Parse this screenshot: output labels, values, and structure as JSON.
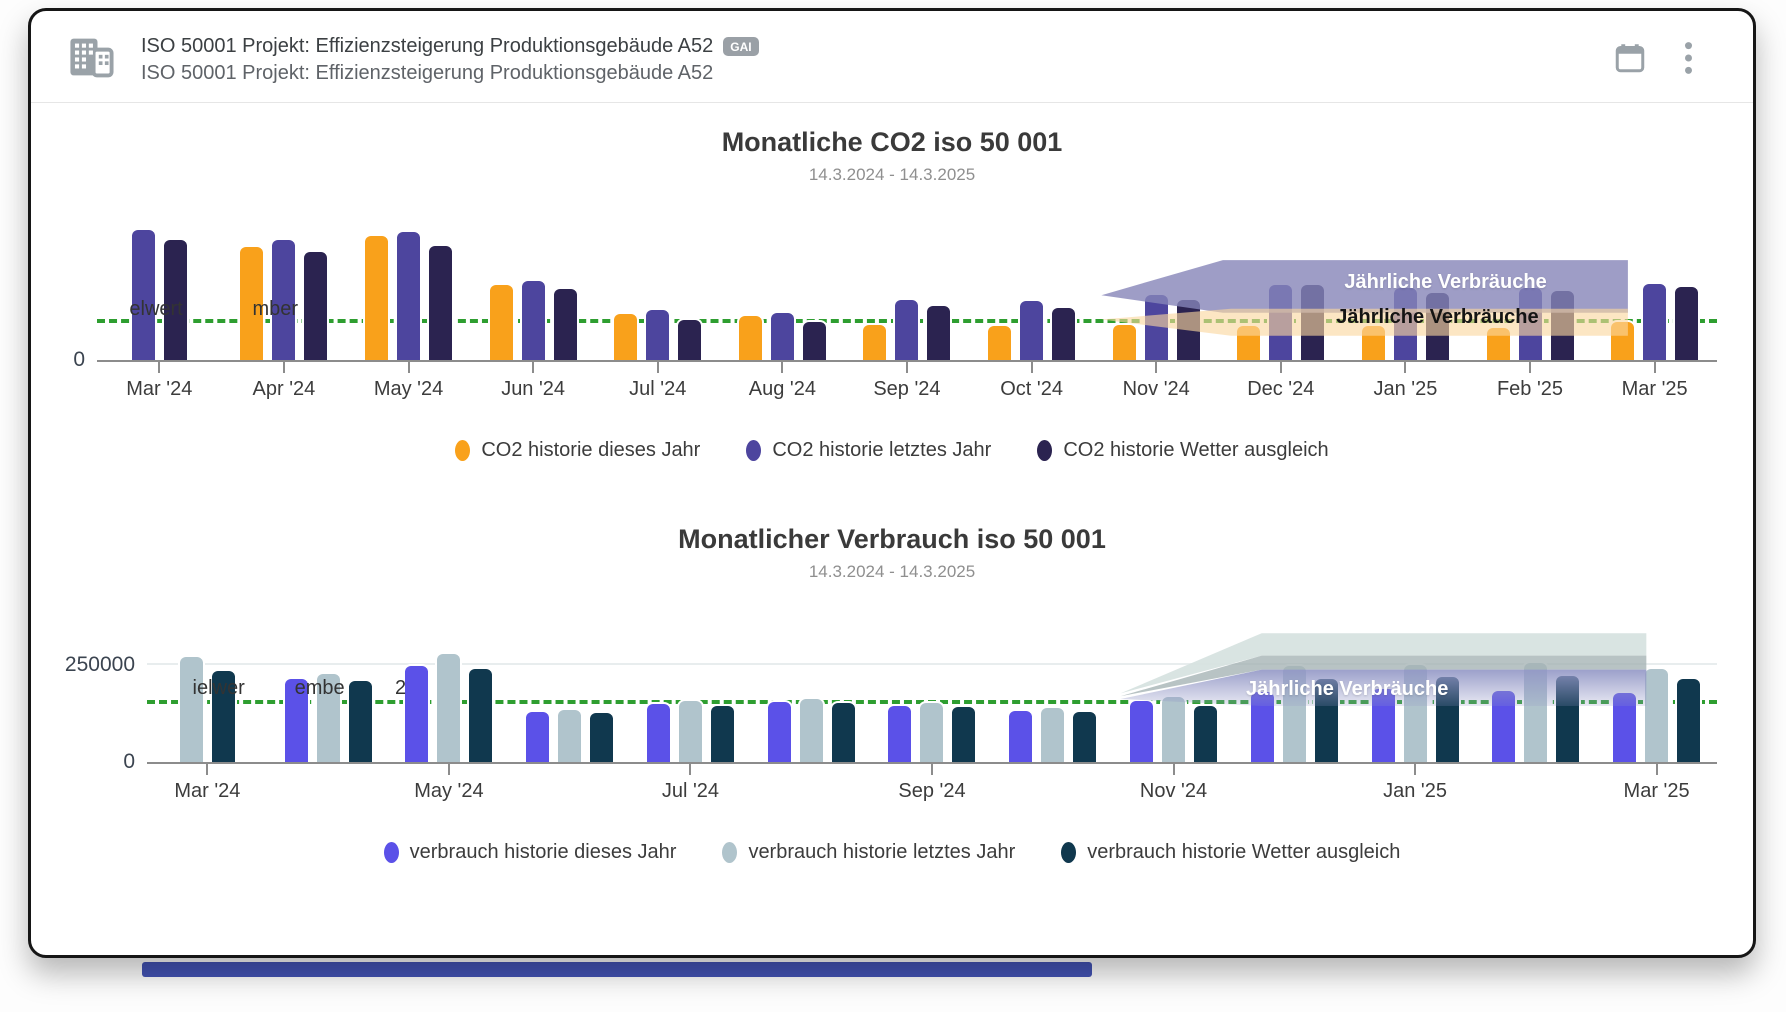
{
  "header": {
    "title": "ISO 50001 Projekt: Effizienzsteigerung Produktionsgebäude A52",
    "badge_label": "GAI",
    "subtitle": "ISO 50001 Projekt: Effizienzsteigerung Produktionsgebäude A52",
    "icons": {
      "building": "building-icon",
      "calendar": "calendar-icon",
      "menu": "kebab-menu-icon"
    },
    "icon_color": "#9aa2a8"
  },
  "chart_data": [
    {
      "type": "bar",
      "title": "Monatliche CO2 iso 50 001",
      "subtitle": "14.3.2024 - 14.3.2025",
      "categories": [
        "Mar '24",
        "Apr '24",
        "May '24",
        "Jun '24",
        "Jul '24",
        "Aug '24",
        "Sep '24",
        "Oct '24",
        "Nov '24",
        "Dec '24",
        "Jan '25",
        "Feb '25",
        "Mar '25"
      ],
      "x_tick_labels": [
        "Mar '24",
        "Apr '24",
        "May '24",
        "Jun '24",
        "Jul '24",
        "Aug '24",
        "Sep '24",
        "Oct '24",
        "Nov '24",
        "Dec '24",
        "Jan '25",
        "Feb '25",
        "Mar '25"
      ],
      "series": [
        {
          "name": "CO2 historie dieses Jahr",
          "color": "#F9A11B",
          "values": [
            0,
            87,
            95,
            58,
            36,
            35,
            28,
            27,
            28,
            27,
            27,
            26,
            30
          ]
        },
        {
          "name": "CO2 historie letztes Jahr",
          "color": "#4D459E",
          "values": [
            100,
            92,
            98,
            61,
            39,
            37,
            47,
            46,
            51,
            58,
            56,
            56,
            59
          ]
        },
        {
          "name": "CO2 historie Wetter ausgleich",
          "color": "#2B2350",
          "values": [
            92,
            83,
            88,
            55,
            32,
            30,
            42,
            41,
            47,
            58,
            52,
            54,
            57
          ]
        }
      ],
      "ylim": [
        0,
        102
      ],
      "y_axis": {
        "ticks": [
          "0"
        ],
        "note": "axis unlabeled except 0; values are relative heights"
      },
      "target_line": {
        "value": 28,
        "color": "#2E9E30",
        "style": "dashed",
        "label_fragments": [
          "elwert",
          "mber"
        ]
      },
      "annotations": [
        {
          "text": "Jährliche Verbräuche",
          "text_color": "#ffffff",
          "band_color": "#8684B8"
        },
        {
          "text": "Jährliche Verbräuche",
          "text_color": "#141414",
          "band_color": "#FAD69E"
        }
      ],
      "legend_position": "bottom",
      "grid": false
    },
    {
      "type": "bar",
      "title": "Monatlicher Verbrauch iso 50 001",
      "subtitle": "14.3.2024 - 14.3.2025",
      "categories": [
        "Mar '24",
        "Apr '24",
        "May '24",
        "Jun '24",
        "Jul '24",
        "Aug '24",
        "Sep '24",
        "Oct '24",
        "Nov '24",
        "Dec '24",
        "Jan '25",
        "Feb '25",
        "Mar '25"
      ],
      "x_tick_labels": [
        "Mar '24",
        "",
        "May '24",
        "",
        "Jul '24",
        "",
        "Sep '24",
        "",
        "Nov '24",
        "",
        "Jan '25",
        "",
        "Mar '25"
      ],
      "series": [
        {
          "name": "verbrauch historie dieses Jahr",
          "color": "#5B51E8",
          "values": [
            0,
            219000,
            253000,
            135000,
            155000,
            160000,
            150000,
            137000,
            162000,
            185000,
            193000,
            188000,
            183000
          ]
        },
        {
          "name": "verbrauch historie letztes Jahr",
          "color": "#B0C4CC",
          "values": [
            276000,
            232000,
            283000,
            140000,
            163000,
            168000,
            158000,
            143000,
            173000,
            252000,
            255000,
            260000,
            245000
          ]
        },
        {
          "name": "verbrauch historie Wetter ausgleich",
          "color": "#10384E",
          "values": [
            240000,
            214000,
            245000,
            130000,
            150000,
            157000,
            147000,
            133000,
            150000,
            219000,
            224000,
            227000,
            219000
          ]
        }
      ],
      "ylim": [
        0,
        360000
      ],
      "y_axis": {
        "ticks": [
          "250000",
          "0"
        ]
      },
      "target_line": {
        "value": 150000,
        "color": "#2E9E30",
        "style": "dashed",
        "label_fragments": [
          "ielwer",
          "embe",
          "2"
        ]
      },
      "annotations": [
        {
          "text": "Jährliche Verbräuche",
          "text_color": "#ffffff",
          "band_colors": [
            "#D6E2DF",
            "#A4B2B4",
            "#9196C5"
          ]
        }
      ],
      "legend_position": "bottom",
      "grid": "horizontal line at 250000"
    }
  ]
}
